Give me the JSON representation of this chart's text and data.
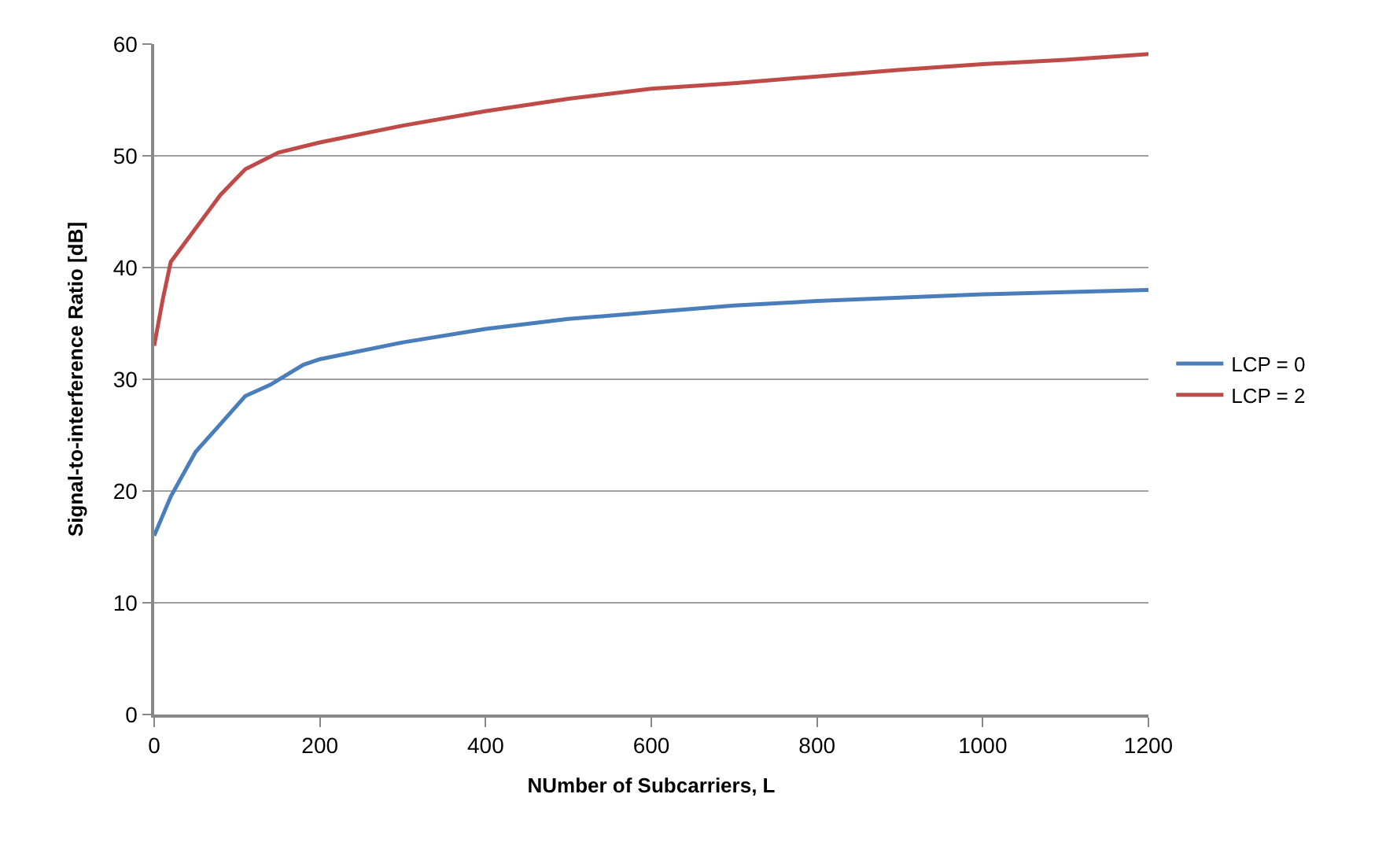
{
  "chart_data": {
    "type": "line",
    "xlabel": "NUmber of Subcarriers, L",
    "ylabel": "Signal-to-interference Ratio [dB]",
    "xlim": [
      0,
      1200
    ],
    "xticks": [
      0,
      200,
      400,
      600,
      800,
      1000,
      1200
    ],
    "ylim": [
      0,
      60
    ],
    "yticks": [
      0,
      10,
      20,
      30,
      40,
      50,
      60
    ],
    "grid": "y",
    "legend": "right",
    "marker": "none",
    "line_style": "solid",
    "series": [
      {
        "name": "LCP = 0",
        "color": "#4a7ebb",
        "x": [
          0,
          20,
          50,
          80,
          110,
          140,
          180,
          200,
          300,
          400,
          500,
          600,
          700,
          800,
          900,
          1000,
          1100,
          1200
        ],
        "values": [
          16,
          19.5,
          23.5,
          26,
          28.5,
          29.5,
          31.3,
          31.8,
          33.3,
          34.5,
          35.4,
          36,
          36.6,
          37,
          37.3,
          37.6,
          37.8,
          38
        ]
      },
      {
        "name": "LCP = 2",
        "color": "#be4b48",
        "x": [
          0,
          10,
          20,
          50,
          80,
          110,
          150,
          200,
          300,
          400,
          500,
          600,
          700,
          800,
          900,
          1000,
          1100,
          1200
        ],
        "values": [
          33,
          37,
          40.5,
          43.5,
          46.5,
          48.8,
          50.3,
          51.2,
          52.7,
          54,
          55.1,
          56,
          56.5,
          57.1,
          57.7,
          58.2,
          58.6,
          59.1
        ]
      }
    ]
  }
}
